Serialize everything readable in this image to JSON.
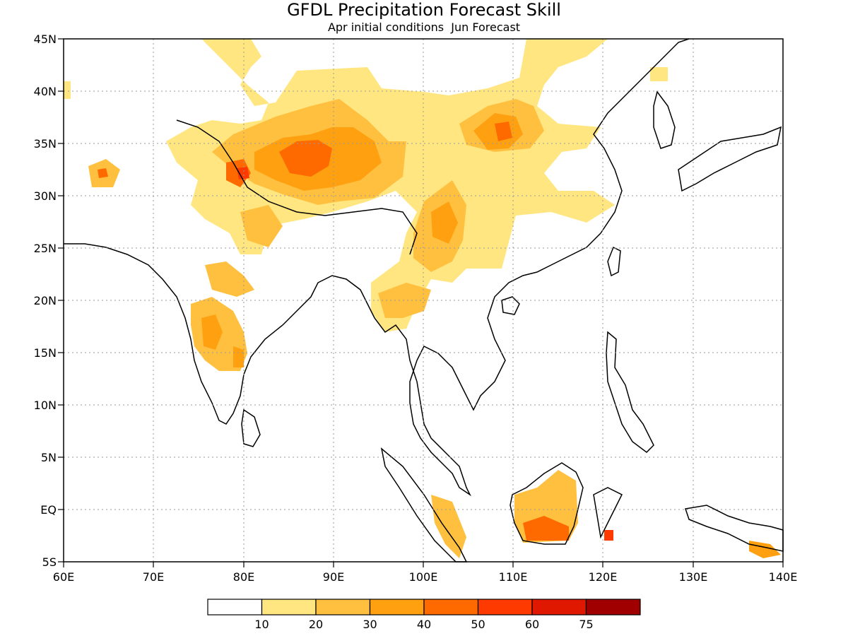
{
  "figure": {
    "title": "GFDL Precipitation Forecast Skill",
    "subtitle": "Apr initial conditions  Jun Forecast"
  },
  "axes": {
    "lon_range": [
      60,
      140
    ],
    "lat_range": [
      -5,
      45
    ],
    "x_ticks": [
      "60E",
      "70E",
      "80E",
      "90E",
      "100E",
      "110E",
      "120E",
      "130E",
      "140E"
    ],
    "y_ticks": [
      "45N",
      "40N",
      "35N",
      "30N",
      "25N",
      "20N",
      "15N",
      "10N",
      "5N",
      "EQ",
      "5S"
    ],
    "grid": "dotted"
  },
  "colorbar": {
    "labels": [
      "10",
      "20",
      "30",
      "40",
      "50",
      "60",
      "75"
    ],
    "colors": [
      "#ffffff",
      "#ffe680",
      "#ffc040",
      "#ffa010",
      "#ff6a00",
      "#ff3a00",
      "#e01800",
      "#a00000"
    ]
  },
  "map_features": {
    "shaded_field": "precipitation forecast skill",
    "coastline": "black outline"
  }
}
